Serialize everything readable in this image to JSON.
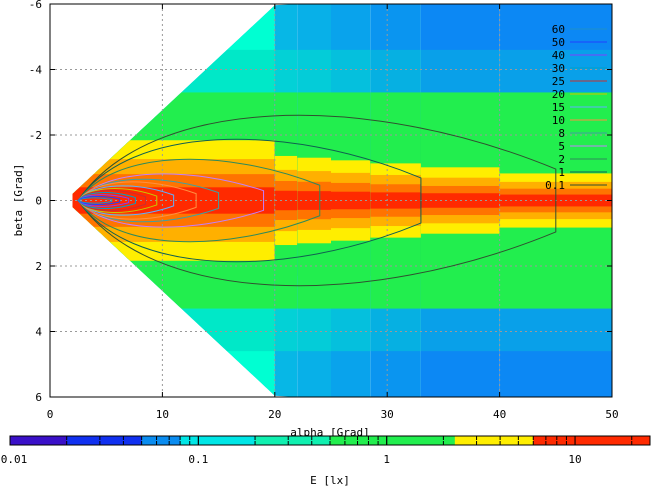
{
  "chart_data": {
    "type": "heatmap",
    "title": "",
    "xlabel": "alpha [Grad]",
    "ylabel": "beta [Grad]",
    "xlim": [
      0,
      50
    ],
    "ylim": [
      -6,
      6
    ],
    "y_inverted": true,
    "grid": true,
    "x_ticks": [
      0,
      10,
      20,
      30,
      40,
      50
    ],
    "y_ticks": [
      -6,
      -4,
      -2,
      0,
      2,
      4,
      6
    ],
    "x_tick_labels": [
      "0",
      "10",
      "20",
      "30",
      "40",
      "50"
    ],
    "y_tick_labels": [
      "-6",
      "-4",
      "-2",
      "0",
      "2",
      "4",
      "6"
    ],
    "colorbar": {
      "label": "E [lx]",
      "scale": "log",
      "range": [
        0.01,
        25
      ],
      "ticks": [
        0.01,
        0.1,
        1,
        10
      ],
      "tick_labels": [
        "0.01",
        "0.1",
        "1",
        "10"
      ],
      "color_bands": [
        {
          "from": 0.01,
          "to": 0.02,
          "color": "#3a10c8"
        },
        {
          "from": 0.02,
          "to": 0.05,
          "color": "#1030f0"
        },
        {
          "from": 0.05,
          "to": 0.08,
          "color": "#0a8cf0"
        },
        {
          "from": 0.08,
          "to": 0.2,
          "color": "#00e6e6"
        },
        {
          "from": 0.2,
          "to": 0.5,
          "color": "#10f0b0"
        },
        {
          "from": 0.5,
          "to": 2.3,
          "color": "#22ee4e"
        },
        {
          "from": 2.3,
          "to": 6,
          "color": "#ffee00"
        },
        {
          "from": 6,
          "to": 25,
          "color": "#ff2a00"
        }
      ]
    },
    "contour_levels": [
      "60",
      "50",
      "40",
      "30",
      "25",
      "20",
      "15",
      "10",
      "8",
      "5",
      "2",
      "1",
      "0.1"
    ],
    "contour_colors": [
      "#1e90c8",
      "#2040ff",
      "#8040ff",
      "#00a0c8",
      "#c83030",
      "#c8c800",
      "#5fb0ff",
      "#ff9040",
      "#40a0a0",
      "#c080ff",
      "#2e8a5a",
      "#106050",
      "#305030"
    ],
    "slices": [
      {
        "alpha_start": 2,
        "alpha_end": 20,
        "beta_half": 6
      },
      {
        "alpha_start": 20,
        "alpha_end": 22,
        "beta_half": 6
      },
      {
        "alpha_start": 22,
        "alpha_end": 25,
        "beta_half": 6
      },
      {
        "alpha_start": 25,
        "alpha_end": 28.5,
        "beta_half": 6
      },
      {
        "alpha_start": 28.5,
        "alpha_end": 33,
        "beta_half": 6
      },
      {
        "alpha_start": 33,
        "alpha_end": 40,
        "beta_half": 6
      },
      {
        "alpha_start": 40,
        "alpha_end": 50,
        "beta_half": 6
      }
    ],
    "contour_extents": [
      {
        "level": "0.1",
        "alpha_max": 45,
        "beta_half": 3.2
      },
      {
        "level": "1",
        "alpha_max": 33,
        "beta_half": 2.3
      },
      {
        "level": "2",
        "alpha_max": 24,
        "beta_half": 1.55
      },
      {
        "level": "5",
        "alpha_max": 19,
        "beta_half": 1.0
      },
      {
        "level": "8",
        "alpha_max": 15,
        "beta_half": 0.8
      },
      {
        "level": "10",
        "alpha_max": 13,
        "beta_half": 0.7
      },
      {
        "level": "15",
        "alpha_max": 11,
        "beta_half": 0.55
      },
      {
        "level": "20",
        "alpha_max": 9.5,
        "beta_half": 0.45
      },
      {
        "level": "25",
        "alpha_max": 8.5,
        "beta_half": 0.38
      },
      {
        "level": "30",
        "alpha_max": 7.6,
        "beta_half": 0.3
      },
      {
        "level": "40",
        "alpha_max": 7,
        "beta_half": 0.22
      },
      {
        "level": "50",
        "alpha_max": 6.2,
        "beta_half": 0.15
      },
      {
        "level": "60",
        "alpha_max": 5.5,
        "beta_half": 0.1
      }
    ]
  }
}
